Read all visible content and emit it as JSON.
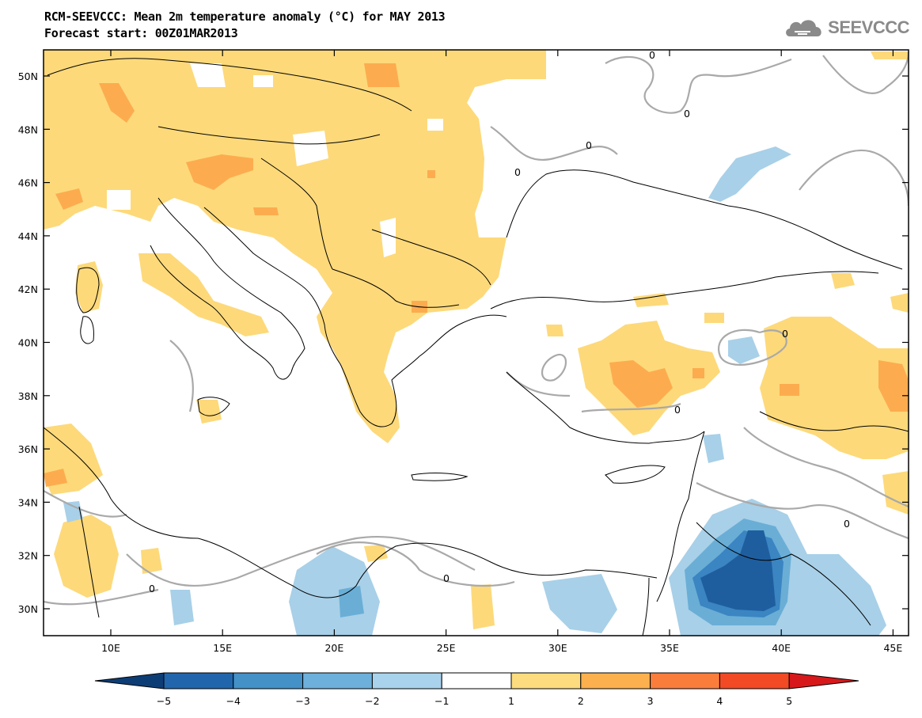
{
  "header": {
    "title_line1": "RCM-SEEVCCC: Mean 2m temperature anomaly (°C) for MAY 2013",
    "title_line2": "Forecast start: 00Z01MAR2013",
    "logo_text": "SEEVCCC"
  },
  "map": {
    "lat_labels": [
      "50N",
      "48N",
      "46N",
      "44N",
      "42N",
      "40N",
      "38N",
      "36N",
      "34N",
      "32N",
      "30N"
    ],
    "lon_labels": [
      "10E",
      "15E",
      "20E",
      "25E",
      "30E",
      "35E",
      "40E",
      "45E"
    ],
    "contour_label": "0",
    "colors": {
      "ocean_land": "#ffffff",
      "warm_1_2": "#fdd97a",
      "warm_2_3": "#fcac4e",
      "cold_1_2": "#a8d0e8",
      "cold_2_3": "#6aaed6",
      "cold_3_4": "#3a85c2",
      "cold_4_5": "#1f5e9e",
      "contour": "#a9a9a9",
      "border": "#000000"
    }
  },
  "colorbar": {
    "labels": [
      "−5",
      "−4",
      "−3",
      "−2",
      "−1",
      "1",
      "2",
      "3",
      "4",
      "5"
    ],
    "colors": [
      "#0d3d75",
      "#2166ac",
      "#4391c7",
      "#6db0dc",
      "#a9d3ec",
      "#ffffff",
      "#fddc7f",
      "#fdb04e",
      "#fb7d3c",
      "#f24a25",
      "#d7191c"
    ]
  }
}
